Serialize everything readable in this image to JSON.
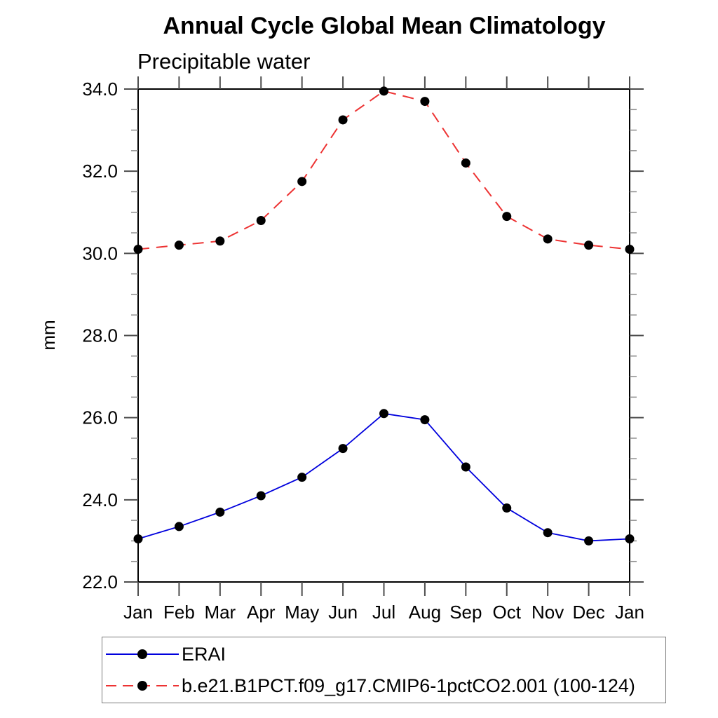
{
  "chart_data": {
    "type": "line",
    "title": "Annual Cycle Global Mean Climatology",
    "subtitle": "Precipitable water",
    "ylabel": "mm",
    "xlabel": "",
    "x_tick_labels": [
      "Jan",
      "Feb",
      "Mar",
      "Apr",
      "May",
      "Jun",
      "Jul",
      "Aug",
      "Sep",
      "Oct",
      "Nov",
      "Dec",
      "Jan"
    ],
    "ylim": [
      22.0,
      34.0
    ],
    "y_major_ticks": [
      22.0,
      24.0,
      26.0,
      28.0,
      30.0,
      32.0,
      34.0
    ],
    "y_tick_labels": [
      "22.0",
      "24.0",
      "26.0",
      "28.0",
      "30.0",
      "32.0",
      "34.0"
    ],
    "y_minor_step": 0.5,
    "grid": false,
    "legend_position": "bottom-left-boxed",
    "axis_color": "#000000",
    "major_tick_color": "#4d4d4d",
    "minor_tick_color": "#8c8c8c",
    "series": [
      {
        "name": "ERAI",
        "color": "#0000dd",
        "line_style": "solid",
        "marker": "filled-circle",
        "marker_color": "#000000",
        "values": [
          23.05,
          23.35,
          23.7,
          24.1,
          24.55,
          25.25,
          26.1,
          25.95,
          24.8,
          23.8,
          23.2,
          23.0,
          23.05
        ]
      },
      {
        "name": "b.e21.B1PCT.f09_g17.CMIP6-1pctCO2.001 (100-124)",
        "color": "#ed3333",
        "line_style": "dashed",
        "marker": "filled-circle",
        "marker_color": "#000000",
        "values": [
          30.1,
          30.2,
          30.3,
          30.8,
          31.75,
          33.25,
          33.95,
          33.7,
          32.2,
          30.9,
          30.35,
          30.2,
          30.1
        ]
      }
    ]
  }
}
